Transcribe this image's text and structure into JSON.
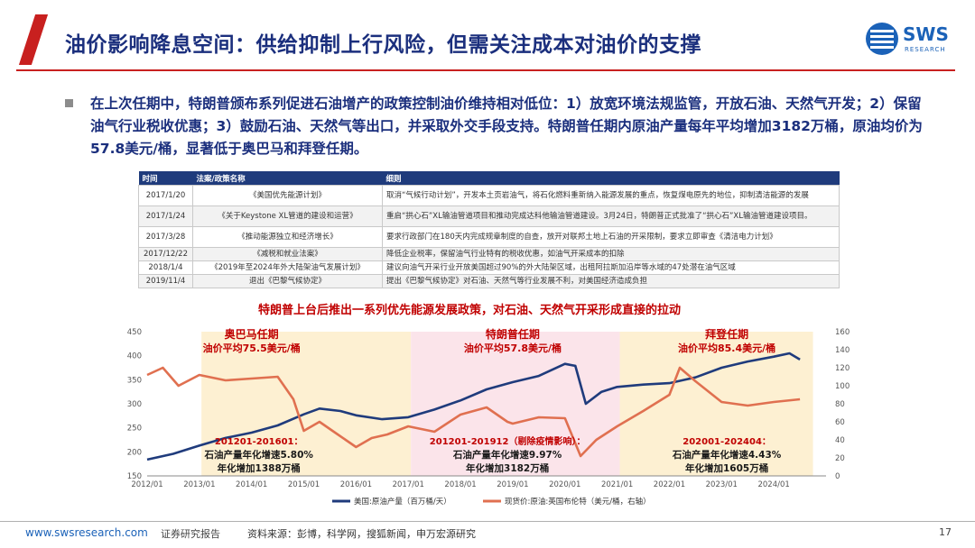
{
  "slide": {
    "title": "油价影响降息空间：供给抑制上行风险，但需关注成本对油价的支撑",
    "bullet": "在上次任期中，特朗普颁布系列促进石油增产的政策控制油价维持相对低位：1）放宽环境法规监管，开放石油、天然气开发；2）保留油气行业税收优惠；3）鼓励石油、天然气等出口，并采取外交手段支持。特朗普任期内原油产量每年平均增加3182万桶，原油均价为57.8美元/桶，显著低于奥巴马和拜登任期。"
  },
  "logo": {
    "name": "SWS",
    "sub": "RESEARCH"
  },
  "table": {
    "headers": [
      "时间",
      "法案/政策名称",
      "细则"
    ],
    "rows": [
      [
        "2017/1/20",
        "《美国优先能源计划》",
        "取消“气候行动计划”，开发本土页岩油气，将石化燃料重新纳入能源发展的重点，恢复煤电原先的地位，抑制清洁能源的发展"
      ],
      [
        "2017/1/24",
        "《关于Keystone XL管道的建设和运营》",
        "重启“拱心石”XL输油管道项目和推动完成达科他输油管道建设。3月24日，特朗普正式批准了“拱心石”XL输油管道建设项目。"
      ],
      [
        "2017/3/28",
        "《推动能源独立和经济增长》",
        "要求行政部门在180天内完成规章制度的自查，放开对联邦土地上石油的开采限制，要求立即审查《清洁电力计划》"
      ],
      [
        "2017/12/22",
        "《减税和就业法案》",
        "降低企业税率，保留油气行业特有的税收优惠，如油气开采成本的扣除"
      ],
      [
        "2018/1/4",
        "《2019年至2024年外大陆架油气发展计划》",
        "建议向油气开采行业开放美国超过90%的外大陆架区域，出租阿拉斯加沿岸等水域的47处潜在油气区域"
      ],
      [
        "2019/11/4",
        "退出《巴黎气候协定》",
        "提出《巴黎气候协定》对石油、天然气等行业发展不利，对美国经济造成负担"
      ]
    ]
  },
  "chart_data": {
    "type": "line",
    "title": "特朗普上台后推出一系列优先能源发展政策，对石油、天然气开采形成直接的拉动",
    "x_ticks": [
      "2012/01",
      "2013/01",
      "2014/01",
      "2015/01",
      "2016/01",
      "2017/01",
      "2018/01",
      "2019/01",
      "2020/01",
      "2021/01",
      "2022/01",
      "2023/01",
      "2024/01"
    ],
    "y_left": {
      "ticks": [
        150,
        200,
        250,
        300,
        350,
        400,
        450
      ],
      "ylim": [
        150,
        450
      ]
    },
    "y_right": {
      "ticks": [
        0,
        20,
        40,
        60,
        80,
        100,
        120,
        140,
        160
      ],
      "ylim": [
        0,
        160
      ]
    },
    "colors": {
      "production": "#1f3b7c",
      "brent": "#e07050",
      "title": "#c00000",
      "obama_band": "#fdf0d2",
      "trump_band": "#fbe4ea",
      "biden_band": "#fdf0d2"
    },
    "periods": [
      {
        "name": "奥巴马任期",
        "avg": "油价平均75.5美元/桶",
        "start": 2013.04,
        "end": 2017.05,
        "note1": "201201-201601：",
        "note2": "石油产量年化增速5.80%",
        "note3": "年化增加1388万桶"
      },
      {
        "name": "特朗普任期",
        "avg": "油价平均57.8美元/桶",
        "start": 2017.05,
        "end": 2021.05,
        "note1": "201201-201912（剔除疫情影响）：",
        "note2": "石油产量年化增速9.97%",
        "note3": "年化增加3182万桶"
      },
      {
        "name": "拜登任期",
        "avg": "油价平均85.4美元/桶",
        "start": 2021.05,
        "end": 2024.75,
        "note1": "202001-202404：",
        "note2": "石油产量年化增速4.43%",
        "note3": "年化增加1605万桶"
      }
    ],
    "series": [
      {
        "name": "美国:原油产量（百万桶/天）",
        "axis": "left",
        "x": [
          2012.0,
          2012.5,
          2013.0,
          2013.5,
          2014.0,
          2014.5,
          2015.0,
          2015.3,
          2015.7,
          2016.0,
          2016.5,
          2017.0,
          2017.5,
          2018.0,
          2018.5,
          2019.0,
          2019.5,
          2020.0,
          2020.2,
          2020.4,
          2020.7,
          2021.0,
          2021.5,
          2022.0,
          2022.5,
          2023.0,
          2023.5,
          2024.0,
          2024.3,
          2024.5
        ],
        "values": [
          184,
          196,
          213,
          229,
          240,
          255,
          278,
          290,
          285,
          276,
          268,
          272,
          288,
          307,
          330,
          345,
          358,
          383,
          379,
          300,
          325,
          335,
          340,
          343,
          355,
          375,
          388,
          398,
          405,
          392
        ]
      },
      {
        "name": "现货价:原油:英国布伦特（美元/桶，右轴）",
        "axis": "right",
        "x": [
          2012.0,
          2012.3,
          2012.6,
          2013.0,
          2013.5,
          2014.0,
          2014.5,
          2014.8,
          2015.0,
          2015.3,
          2015.6,
          2016.0,
          2016.3,
          2016.6,
          2017.0,
          2017.5,
          2018.0,
          2018.5,
          2018.9,
          2019.0,
          2019.5,
          2020.0,
          2020.3,
          2020.6,
          2021.0,
          2021.5,
          2022.0,
          2022.2,
          2022.5,
          2023.0,
          2023.5,
          2024.0,
          2024.5
        ],
        "values": [
          112,
          120,
          100,
          112,
          106,
          108,
          110,
          85,
          50,
          60,
          48,
          32,
          42,
          46,
          55,
          49,
          68,
          76,
          60,
          58,
          65,
          64,
          22,
          40,
          55,
          72,
          90,
          120,
          105,
          82,
          78,
          82,
          85
        ]
      }
    ]
  },
  "footer": {
    "url": "www.swsresearch.com",
    "category": "证券研究报告",
    "source": "资料来源：彭博，科学网，搜狐新闻，申万宏源研究",
    "page": "17"
  }
}
